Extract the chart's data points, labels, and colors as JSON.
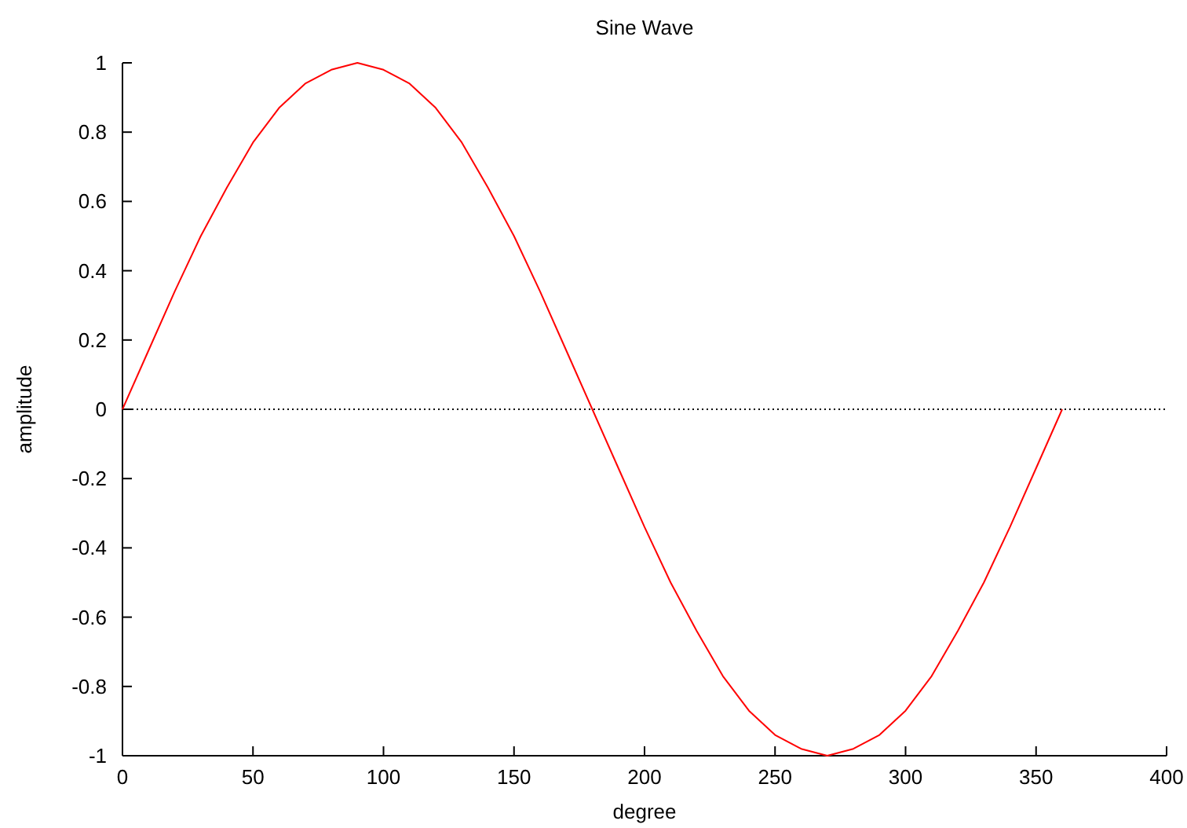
{
  "chart_data": {
    "type": "line",
    "title": "Sine Wave",
    "xlabel": "degree",
    "ylabel": "amplitude",
    "x": [
      0,
      10,
      20,
      30,
      40,
      50,
      60,
      70,
      80,
      90,
      100,
      110,
      120,
      130,
      140,
      150,
      160,
      170,
      180,
      190,
      200,
      210,
      220,
      230,
      240,
      250,
      260,
      270,
      280,
      290,
      300,
      310,
      320,
      330,
      340,
      350,
      360
    ],
    "series": [
      {
        "color": "#ff0000",
        "values": [
          0,
          0.17,
          0.34,
          0.5,
          0.64,
          0.77,
          0.87,
          0.94,
          0.98,
          1,
          0.98,
          0.94,
          0.87,
          0.77,
          0.64,
          0.5,
          0.34,
          0.17,
          0,
          -0.17,
          -0.34,
          -0.5,
          -0.64,
          -0.77,
          -0.87,
          -0.94,
          -0.98,
          -1,
          -0.98,
          -0.94,
          -0.87,
          -0.77,
          -0.64,
          -0.5,
          -0.34,
          -0.17,
          0
        ]
      }
    ],
    "xlim": [
      0,
      400
    ],
    "xticks": [
      0,
      50,
      100,
      150,
      200,
      250,
      300,
      350,
      400
    ],
    "ylim": [
      -1,
      1
    ],
    "yticks": [
      -1,
      -0.8,
      -0.6,
      -0.4,
      -0.2,
      0,
      0.2,
      0.4,
      0.6,
      0.8,
      1
    ],
    "ref_lines": [
      {
        "axis": "y",
        "value": 0,
        "color": "#000000",
        "line_style": "dotted"
      }
    ],
    "grid": false,
    "marker": "none",
    "line_style": "solid"
  }
}
